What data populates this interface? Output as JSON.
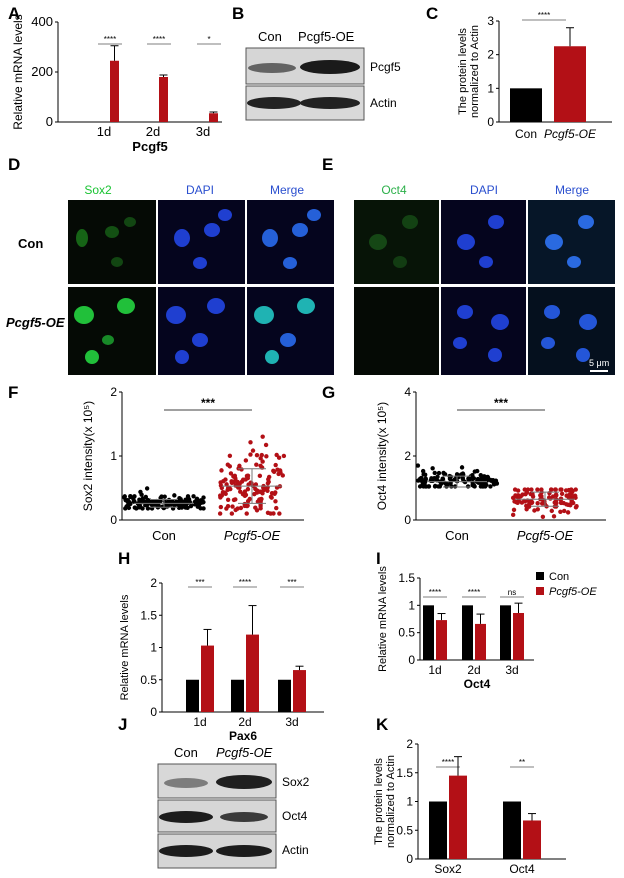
{
  "panels": {
    "A": "A",
    "B": "B",
    "C": "C",
    "D": "D",
    "E": "E",
    "F": "F",
    "G": "G",
    "H": "H",
    "I": "I",
    "J": "J",
    "K": "K"
  },
  "colors": {
    "con": "#000000",
    "oe": "#b31016",
    "sox2": "#19c332",
    "oct4": "#2cb04a",
    "dapi": "#1f64e0"
  },
  "legend": {
    "con": "Con",
    "oe": "Pcgf5-OE"
  },
  "blotB": {
    "headers": [
      "Con",
      "Pcgf5-OE"
    ],
    "rows": [
      "Pcgf5",
      "Actin"
    ]
  },
  "blotJ": {
    "headers": [
      "Con",
      "Pcgf5-OE"
    ],
    "rows": [
      "Sox2",
      "Oct4",
      "Actin"
    ]
  },
  "microD": {
    "headers": [
      "Sox2",
      "DAPI",
      "Merge"
    ],
    "rows": [
      "Con",
      "Pcgf5-OE"
    ]
  },
  "microE": {
    "headers": [
      "Oct4",
      "DAPI",
      "Merge"
    ],
    "scalebar": "5 μm"
  },
  "chart_data": [
    {
      "panel": "A",
      "type": "bar",
      "categories": [
        "1d",
        "2d",
        "3d"
      ],
      "series": [
        {
          "values": [
            245,
            180,
            35
          ],
          "errors": [
            60,
            8,
            5
          ]
        }
      ],
      "ylabel": "Relative mRNA levels",
      "xlabel": "Pcgf5",
      "ylim": [
        0,
        400
      ],
      "yticks": [
        0,
        200,
        400
      ],
      "sig": [
        "****",
        "****",
        "*"
      ]
    },
    {
      "panel": "C",
      "type": "bar",
      "categories": [
        "Con",
        "Pcgf5-OE"
      ],
      "series": [
        {
          "values": [
            1.0,
            2.25
          ],
          "errors": [
            0,
            0.55
          ]
        }
      ],
      "ylabel": "The protein levels normalized to Actin",
      "ylim": [
        0,
        3
      ],
      "yticks": [
        0,
        1,
        2,
        3
      ],
      "sig": [
        "****"
      ]
    },
    {
      "panel": "F",
      "type": "scatter",
      "categories": [
        "Con",
        "Pcgf5-OE"
      ],
      "series": [
        {
          "name": "Con",
          "mean": 0.26,
          "sd": 0.06,
          "min": 0.18,
          "max": 0.5,
          "n": 150
        },
        {
          "name": "Pcgf5-OE",
          "mean": 0.53,
          "sd": 0.27,
          "min": 0.1,
          "max": 1.62,
          "n": 140
        }
      ],
      "ylabel": "Sox2 intensity(x 10⁵)",
      "ylim": [
        0,
        2
      ],
      "yticks": [
        0,
        1,
        2
      ],
      "sig": [
        "***"
      ]
    },
    {
      "panel": "G",
      "type": "scatter",
      "categories": [
        "Con",
        "Pcgf5-OE"
      ],
      "series": [
        {
          "name": "Con",
          "mean": 1.2,
          "sd": 0.17,
          "min": 1.05,
          "max": 2.05,
          "n": 120
        },
        {
          "name": "Pcgf5-OE",
          "mean": 0.65,
          "sd": 0.22,
          "min": 0.1,
          "max": 0.95,
          "n": 110
        }
      ],
      "ylabel": "Oct4 intensity(x 10⁵)",
      "ylim": [
        0,
        4
      ],
      "yticks": [
        0,
        2,
        4
      ],
      "sig": [
        "***"
      ]
    },
    {
      "panel": "H",
      "type": "bar",
      "categories": [
        "1d",
        "2d",
        "3d"
      ],
      "series": [
        {
          "name": "Con",
          "values": [
            0.5,
            0.5,
            0.5
          ],
          "errors": [
            0,
            0,
            0
          ]
        },
        {
          "name": "Pcgf5-OE",
          "values": [
            1.03,
            1.2,
            0.65
          ],
          "errors": [
            0.25,
            0.45,
            0.06
          ]
        }
      ],
      "ylabel": "Relative mRNA levels",
      "xlabel": "Pax6",
      "ylim": [
        0,
        2
      ],
      "yticks": [
        0,
        0.5,
        1,
        1.5,
        2
      ],
      "sig": [
        "***",
        "****",
        "***"
      ]
    },
    {
      "panel": "I",
      "type": "bar",
      "categories": [
        "1d",
        "2d",
        "3d"
      ],
      "series": [
        {
          "name": "Con",
          "values": [
            1.0,
            1.0,
            1.0
          ],
          "errors": [
            0,
            0,
            0
          ]
        },
        {
          "name": "Pcgf5-OE",
          "values": [
            0.73,
            0.66,
            0.86
          ],
          "errors": [
            0.12,
            0.18,
            0.18
          ]
        }
      ],
      "ylabel": "Relative mRNA levels",
      "xlabel": "Oct4",
      "ylim": [
        0,
        1.5
      ],
      "yticks": [
        0,
        0.5,
        1,
        1.5
      ],
      "sig": [
        "****",
        "****",
        "ns"
      ]
    },
    {
      "panel": "K",
      "type": "bar",
      "categories": [
        "Sox2",
        "Oct4"
      ],
      "series": [
        {
          "name": "Con",
          "values": [
            1.0,
            1.0
          ],
          "errors": [
            0,
            0
          ]
        },
        {
          "name": "Pcgf5-OE",
          "values": [
            1.45,
            0.67
          ],
          "errors": [
            0.33,
            0.12
          ]
        }
      ],
      "ylabel": "The protein levels normalized to Actin",
      "ylim": [
        0,
        2
      ],
      "yticks": [
        0,
        0.5,
        1,
        1.5,
        2
      ],
      "sig": [
        "****",
        "**"
      ]
    }
  ]
}
